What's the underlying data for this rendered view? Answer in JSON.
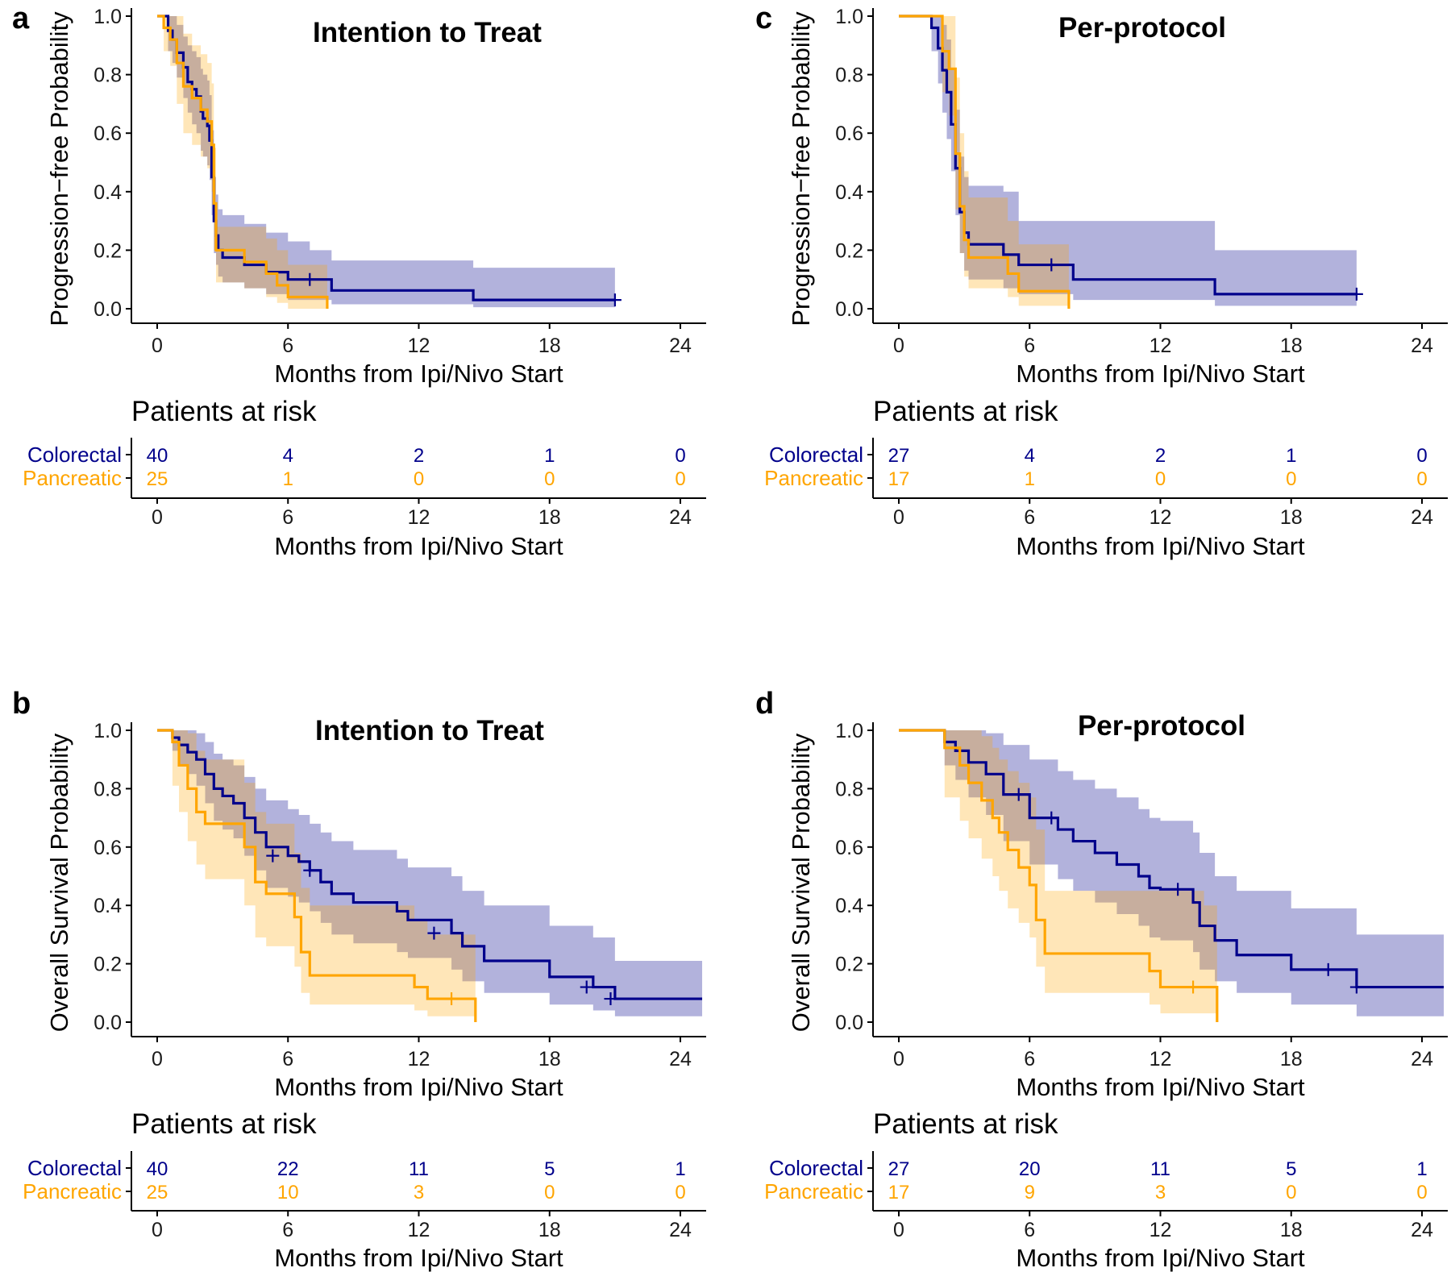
{
  "colors": {
    "colorectal": "#00008B",
    "pancreatic": "#FFA500"
  },
  "xlabel": "Months from Ipi/Nivo Start",
  "risk_title": "Patients at risk",
  "groups": [
    "Colorectal",
    "Pancreatic"
  ],
  "chart_data": [
    {
      "letter": "a",
      "type": "line",
      "step": true,
      "title": "Intention to Treat",
      "ylabel": "Progression−free Probability",
      "xlabel": "Months from Ipi/Nivo Start",
      "x_ticks": [
        0,
        6,
        12,
        18,
        24
      ],
      "y_ticks": [
        "0.0",
        "0.2",
        "0.4",
        "0.6",
        "0.8",
        "1.0"
      ],
      "xlim": [
        -1.2,
        25
      ],
      "ylim": [
        0,
        1.0
      ],
      "series": [
        {
          "name": "Colorectal",
          "x": [
            0,
            0.5,
            0.7,
            0.9,
            1.2,
            1.4,
            1.6,
            1.8,
            2.0,
            2.1,
            2.3,
            2.4,
            2.5,
            2.6,
            2.7,
            2.8,
            3.0,
            4.0,
            5.0,
            6.0,
            7.0,
            8.0,
            14.5,
            21.0
          ],
          "y": [
            1.0,
            0.95,
            0.92,
            0.875,
            0.825,
            0.775,
            0.75,
            0.725,
            0.675,
            0.65,
            0.625,
            0.575,
            0.45,
            0.3,
            0.25,
            0.2,
            0.175,
            0.15,
            0.125,
            0.1,
            0.1,
            0.0625,
            0.03,
            0.03
          ],
          "lower": [
            1.0,
            0.88,
            0.84,
            0.79,
            0.72,
            0.67,
            0.63,
            0.6,
            0.54,
            0.52,
            0.49,
            0.44,
            0.32,
            0.19,
            0.15,
            0.11,
            0.09,
            0.07,
            0.05,
            0.03,
            0.03,
            0.015,
            0.005,
            0.005
          ],
          "upper": [
            1.0,
            1.0,
            1.0,
            0.97,
            0.93,
            0.9,
            0.88,
            0.86,
            0.82,
            0.8,
            0.78,
            0.73,
            0.61,
            0.45,
            0.39,
            0.34,
            0.32,
            0.29,
            0.26,
            0.23,
            0.2,
            0.165,
            0.14,
            0.14
          ],
          "censored": [
            [
              7.0,
              0.1
            ],
            [
              21.0,
              0.03
            ]
          ]
        },
        {
          "name": "Pancreatic",
          "x": [
            0,
            0.3,
            0.6,
            0.9,
            1.2,
            1.6,
            2.0,
            2.3,
            2.5,
            2.6,
            2.7,
            3.0,
            4.0,
            5.0,
            5.5,
            6.0,
            7.8
          ],
          "y": [
            1.0,
            0.96,
            0.92,
            0.84,
            0.76,
            0.72,
            0.68,
            0.64,
            0.56,
            0.36,
            0.2,
            0.2,
            0.16,
            0.12,
            0.08,
            0.04,
            0.0
          ],
          "lower": [
            1.0,
            0.88,
            0.83,
            0.7,
            0.6,
            0.56,
            0.52,
            0.48,
            0.4,
            0.2,
            0.09,
            0.09,
            0.07,
            0.04,
            0.02,
            0.0,
            0.0
          ],
          "upper": [
            1.0,
            1.0,
            1.0,
            1.0,
            0.94,
            0.9,
            0.87,
            0.84,
            0.77,
            0.55,
            0.28,
            0.28,
            0.28,
            0.24,
            0.2,
            0.15,
            0.0
          ],
          "censored": []
        }
      ],
      "risk_table": {
        "times": [
          0,
          6,
          12,
          18,
          24
        ],
        "colorectal": [
          40,
          4,
          2,
          1,
          0
        ],
        "pancreatic": [
          25,
          1,
          0,
          0,
          0
        ]
      }
    },
    {
      "letter": "c",
      "type": "line",
      "step": true,
      "title": "Per-protocol",
      "ylabel": "Progression−free Probability",
      "xlabel": "Months from Ipi/Nivo Start",
      "x_ticks": [
        0,
        6,
        12,
        18,
        24
      ],
      "y_ticks": [
        "0.0",
        "0.2",
        "0.4",
        "0.6",
        "0.8",
        "1.0"
      ],
      "xlim": [
        -1.2,
        25
      ],
      "ylim": [
        0,
        1.0
      ],
      "series": [
        {
          "name": "Colorectal",
          "x": [
            0,
            1.5,
            1.8,
            2.0,
            2.2,
            2.4,
            2.6,
            2.8,
            3.0,
            3.2,
            4.0,
            4.8,
            5.5,
            8.0,
            14.5,
            21.0
          ],
          "y": [
            1.0,
            0.96,
            0.89,
            0.815,
            0.74,
            0.63,
            0.48,
            0.33,
            0.26,
            0.22,
            0.22,
            0.185,
            0.15,
            0.1,
            0.05,
            0.05
          ],
          "lower": [
            1.0,
            0.88,
            0.77,
            0.67,
            0.58,
            0.47,
            0.32,
            0.19,
            0.13,
            0.1,
            0.1,
            0.07,
            0.05,
            0.03,
            0.01,
            0.01
          ],
          "upper": [
            1.0,
            1.0,
            1.0,
            0.97,
            0.92,
            0.82,
            0.68,
            0.52,
            0.45,
            0.42,
            0.42,
            0.4,
            0.3,
            0.3,
            0.2,
            0.2
          ],
          "censored": [
            [
              7.0,
              0.15
            ],
            [
              21.0,
              0.05
            ]
          ]
        },
        {
          "name": "Pancreatic",
          "x": [
            0,
            1.6,
            2.0,
            2.3,
            2.6,
            2.8,
            3.0,
            3.2,
            4.0,
            5.0,
            5.5,
            7.8
          ],
          "y": [
            1.0,
            1.0,
            0.88,
            0.82,
            0.53,
            0.35,
            0.235,
            0.175,
            0.175,
            0.12,
            0.06,
            0.0
          ],
          "lower": [
            1.0,
            1.0,
            0.74,
            0.66,
            0.34,
            0.19,
            0.11,
            0.07,
            0.07,
            0.04,
            0.01,
            0.0
          ],
          "upper": [
            1.0,
            1.0,
            1.0,
            1.0,
            0.79,
            0.6,
            0.47,
            0.38,
            0.38,
            0.3,
            0.22,
            0.0
          ],
          "censored": []
        }
      ],
      "risk_table": {
        "times": [
          0,
          6,
          12,
          18,
          24
        ],
        "colorectal": [
          27,
          4,
          2,
          1,
          0
        ],
        "pancreatic": [
          17,
          1,
          0,
          0,
          0
        ]
      }
    },
    {
      "letter": "b",
      "type": "line",
      "step": true,
      "title": "Intention to Treat",
      "ylabel": "Overall Survival Probability",
      "xlabel": "Months from Ipi/Nivo Start",
      "x_ticks": [
        0,
        6,
        12,
        18,
        24
      ],
      "y_ticks": [
        "0.0",
        "0.2",
        "0.4",
        "0.6",
        "0.8",
        "1.0"
      ],
      "xlim": [
        -1.2,
        25
      ],
      "ylim": [
        0,
        1.0
      ],
      "series": [
        {
          "name": "Colorectal",
          "x": [
            0,
            0.7,
            1.0,
            1.4,
            1.8,
            2.2,
            2.6,
            3.0,
            3.5,
            4.0,
            4.5,
            5.0,
            6.0,
            6.5,
            7.0,
            7.5,
            8.0,
            9.0,
            11.0,
            11.5,
            13.5,
            14.0,
            15.0,
            18.0,
            20.0,
            21.0,
            25.0
          ],
          "y": [
            1.0,
            0.975,
            0.95,
            0.925,
            0.9,
            0.85,
            0.8,
            0.775,
            0.75,
            0.7,
            0.65,
            0.6,
            0.57,
            0.55,
            0.52,
            0.48,
            0.44,
            0.41,
            0.38,
            0.35,
            0.305,
            0.26,
            0.21,
            0.155,
            0.12,
            0.08,
            0.08
          ],
          "lower": [
            1.0,
            0.93,
            0.88,
            0.85,
            0.81,
            0.75,
            0.69,
            0.66,
            0.63,
            0.57,
            0.52,
            0.46,
            0.43,
            0.41,
            0.38,
            0.34,
            0.3,
            0.27,
            0.24,
            0.22,
            0.18,
            0.14,
            0.1,
            0.06,
            0.04,
            0.02,
            0.02
          ],
          "upper": [
            1.0,
            1.0,
            1.0,
            1.0,
            0.99,
            0.96,
            0.92,
            0.9,
            0.88,
            0.84,
            0.8,
            0.76,
            0.73,
            0.71,
            0.68,
            0.65,
            0.62,
            0.59,
            0.56,
            0.53,
            0.5,
            0.45,
            0.4,
            0.33,
            0.29,
            0.21,
            0.21
          ],
          "censored": [
            [
              5.3,
              0.57
            ],
            [
              7.0,
              0.52
            ],
            [
              12.7,
              0.305
            ],
            [
              19.7,
              0.12
            ],
            [
              20.8,
              0.08
            ]
          ]
        },
        {
          "name": "Pancreatic",
          "x": [
            0,
            0.7,
            1.0,
            1.4,
            1.8,
            2.2,
            4.0,
            4.5,
            5.0,
            6.0,
            6.3,
            6.6,
            7.0,
            11.8,
            12.4,
            14.0,
            14.6
          ],
          "y": [
            1.0,
            0.96,
            0.88,
            0.8,
            0.72,
            0.68,
            0.6,
            0.48,
            0.44,
            0.44,
            0.36,
            0.24,
            0.16,
            0.12,
            0.08,
            0.08,
            0.0
          ],
          "lower": [
            1.0,
            0.81,
            0.72,
            0.62,
            0.54,
            0.49,
            0.4,
            0.29,
            0.26,
            0.26,
            0.19,
            0.1,
            0.06,
            0.04,
            0.02,
            0.02,
            0.0
          ],
          "upper": [
            1.0,
            1.0,
            1.0,
            0.99,
            0.93,
            0.9,
            0.82,
            0.72,
            0.68,
            0.68,
            0.58,
            0.46,
            0.4,
            0.35,
            0.3,
            0.3,
            0.0
          ],
          "censored": [
            [
              13.5,
              0.08
            ]
          ]
        }
      ],
      "risk_table": {
        "times": [
          0,
          6,
          12,
          18,
          24
        ],
        "colorectal": [
          40,
          22,
          11,
          5,
          1
        ],
        "pancreatic": [
          25,
          10,
          3,
          0,
          0
        ]
      }
    },
    {
      "letter": "d",
      "type": "line",
      "step": true,
      "title": "Per-protocol",
      "ylabel": "Overall Survival Probability",
      "xlabel": "Months from Ipi/Nivo Start",
      "x_ticks": [
        0,
        6,
        12,
        18,
        24
      ],
      "y_ticks": [
        "0.0",
        "0.2",
        "0.4",
        "0.6",
        "0.8",
        "1.0"
      ],
      "xlim": [
        -1.2,
        25
      ],
      "ylim": [
        0,
        1.0
      ],
      "series": [
        {
          "name": "Colorectal",
          "x": [
            0,
            2.1,
            2.6,
            3.2,
            4.0,
            4.8,
            6.0,
            7.3,
            8.0,
            9.0,
            10.0,
            11.0,
            11.5,
            12.0,
            13.5,
            13.8,
            14.5,
            15.5,
            18.0,
            20.0,
            21.0,
            25.0
          ],
          "y": [
            1.0,
            0.96,
            0.93,
            0.89,
            0.85,
            0.78,
            0.7,
            0.66,
            0.62,
            0.58,
            0.54,
            0.5,
            0.46,
            0.455,
            0.41,
            0.33,
            0.28,
            0.23,
            0.18,
            0.18,
            0.12,
            0.12
          ],
          "lower": [
            1.0,
            0.88,
            0.83,
            0.77,
            0.71,
            0.62,
            0.54,
            0.49,
            0.45,
            0.41,
            0.37,
            0.33,
            0.29,
            0.28,
            0.24,
            0.18,
            0.14,
            0.1,
            0.06,
            0.06,
            0.02,
            0.02
          ],
          "upper": [
            1.0,
            1.0,
            1.0,
            1.0,
            0.99,
            0.95,
            0.9,
            0.86,
            0.83,
            0.8,
            0.77,
            0.73,
            0.7,
            0.69,
            0.65,
            0.58,
            0.5,
            0.45,
            0.39,
            0.39,
            0.3,
            0.3
          ],
          "censored": [
            [
              5.5,
              0.78
            ],
            [
              7.0,
              0.7
            ],
            [
              12.8,
              0.455
            ],
            [
              19.7,
              0.18
            ],
            [
              21.0,
              0.12
            ]
          ]
        },
        {
          "name": "Pancreatic",
          "x": [
            0,
            2.1,
            2.8,
            3.2,
            3.8,
            4.3,
            4.6,
            5.0,
            5.5,
            6.0,
            6.3,
            6.7,
            11.5,
            12.0,
            14.0,
            14.6
          ],
          "y": [
            1.0,
            0.94,
            0.88,
            0.82,
            0.76,
            0.7,
            0.65,
            0.59,
            0.53,
            0.47,
            0.35,
            0.235,
            0.175,
            0.12,
            0.12,
            0.0
          ],
          "lower": [
            1.0,
            0.77,
            0.69,
            0.63,
            0.56,
            0.5,
            0.45,
            0.39,
            0.34,
            0.29,
            0.19,
            0.1,
            0.06,
            0.03,
            0.03,
            0.0
          ],
          "upper": [
            1.0,
            1.0,
            1.0,
            1.0,
            0.98,
            0.94,
            0.9,
            0.86,
            0.82,
            0.77,
            0.66,
            0.45,
            0.45,
            0.45,
            0.4,
            0.0
          ],
          "censored": [
            [
              13.5,
              0.12
            ]
          ]
        }
      ],
      "risk_table": {
        "times": [
          0,
          6,
          12,
          18,
          24
        ],
        "colorectal": [
          27,
          20,
          11,
          5,
          1
        ],
        "pancreatic": [
          17,
          9,
          3,
          0,
          0
        ]
      }
    }
  ]
}
